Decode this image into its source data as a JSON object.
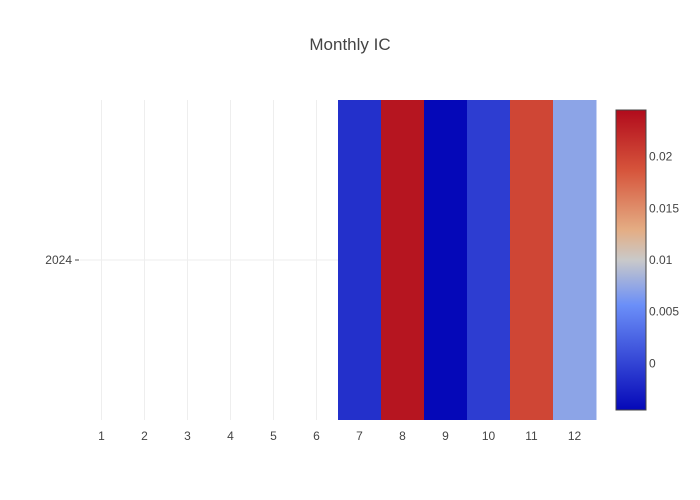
{
  "chart_data": {
    "type": "heatmap",
    "title": "Monthly IC",
    "xlabel": "",
    "ylabel": "",
    "x": [
      "1",
      "2",
      "3",
      "4",
      "5",
      "6",
      "7",
      "8",
      "9",
      "10",
      "11",
      "12"
    ],
    "y": [
      "2024"
    ],
    "z": [
      [
        null,
        null,
        null,
        null,
        null,
        null,
        -0.0015,
        0.0237,
        -0.0045,
        -0.0005,
        0.0198,
        0.0072
      ]
    ],
    "colorscale": [
      [
        0.0,
        "#0508b8"
      ],
      [
        0.35,
        "#6b8ff8"
      ],
      [
        0.5,
        "#c9c9c9"
      ],
      [
        0.6,
        "#e4ad84"
      ],
      [
        0.8,
        "#d6543b"
      ],
      [
        1.0,
        "#b10b1c"
      ]
    ],
    "colorbar": {
      "min": -0.0045,
      "max": 0.0245,
      "ticks": [
        0,
        0.005,
        0.01,
        0.015,
        0.02
      ],
      "tick_labels": [
        "0",
        "0.005",
        "0.01",
        "0.015",
        "0.02"
      ]
    },
    "grid": true
  }
}
